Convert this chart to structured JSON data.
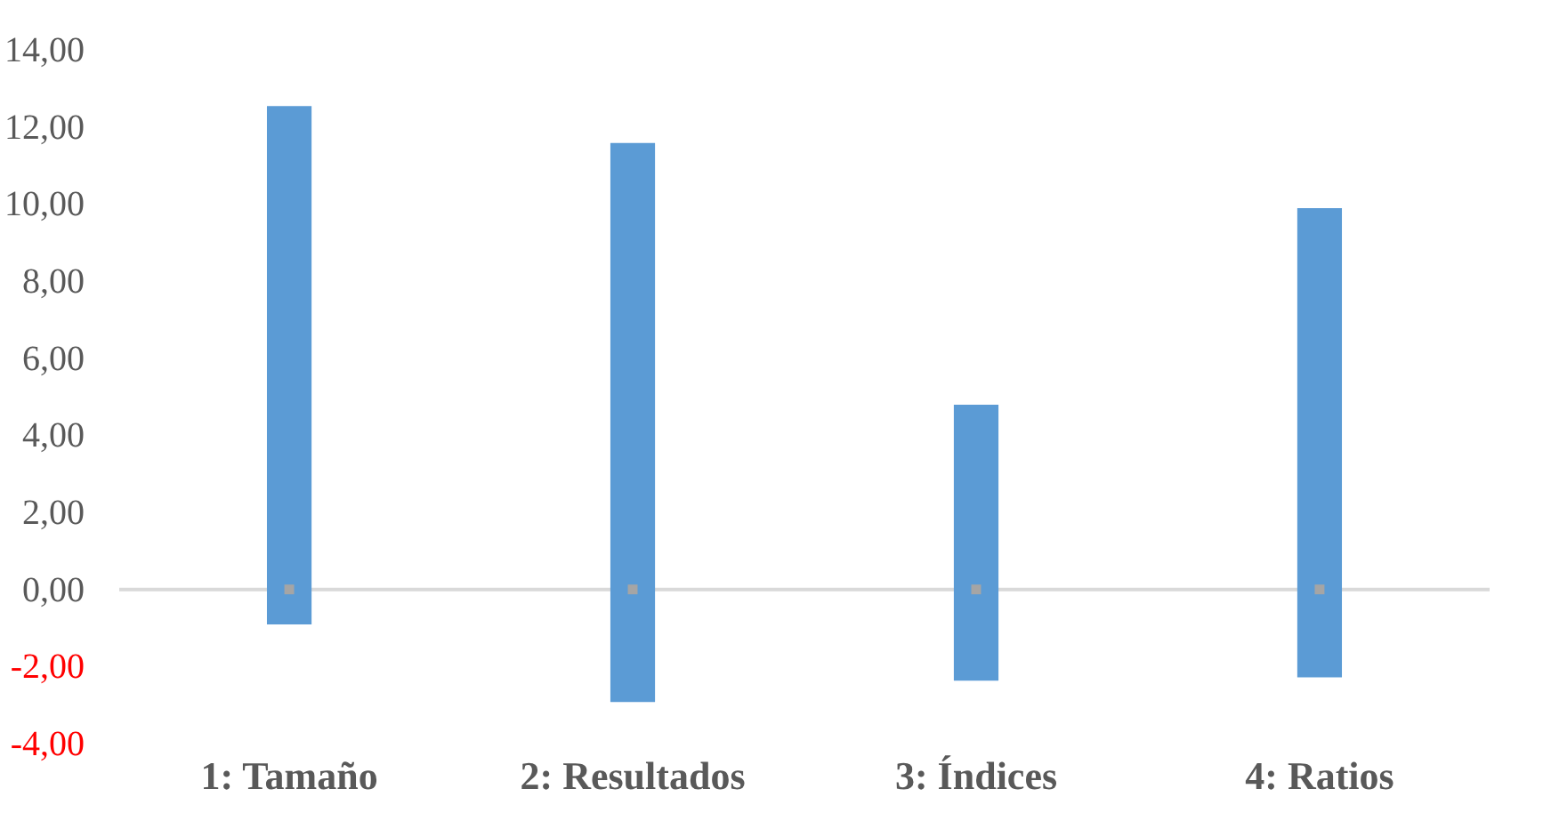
{
  "chart_data": {
    "type": "bar",
    "categories": [
      "1: Tamaño",
      "2: Resultados",
      "3: Índices",
      "4: Ratios"
    ],
    "series": [
      {
        "color": "#5b9bd5",
        "base": [
          -0.91,
          -2.92,
          -2.37,
          -2.28
        ],
        "values": [
          13.45,
          14.5,
          7.16,
          12.17
        ]
      },
      {
        "type": "scatter",
        "color": "#a5a5a5",
        "marker": "square",
        "values": [
          0,
          0,
          0,
          0
        ]
      }
    ],
    "ylim": [
      -4,
      14
    ],
    "yticks": [
      {
        "value": -4,
        "label": "-4,00"
      },
      {
        "value": -2,
        "label": "-2,00"
      },
      {
        "value": 0,
        "label": "0,00"
      },
      {
        "value": 2,
        "label": "2,00"
      },
      {
        "value": 4,
        "label": "4,00"
      },
      {
        "value": 6,
        "label": "6,00"
      },
      {
        "value": 8,
        "label": "8,00"
      },
      {
        "value": 10,
        "label": "10,00"
      },
      {
        "value": 12,
        "label": "12,00"
      },
      {
        "value": 14,
        "label": "14,00"
      }
    ],
    "ref_lines": [
      {
        "axis": "y",
        "value": 0,
        "color": "#d9d9d9"
      }
    ],
    "grid": false
  }
}
